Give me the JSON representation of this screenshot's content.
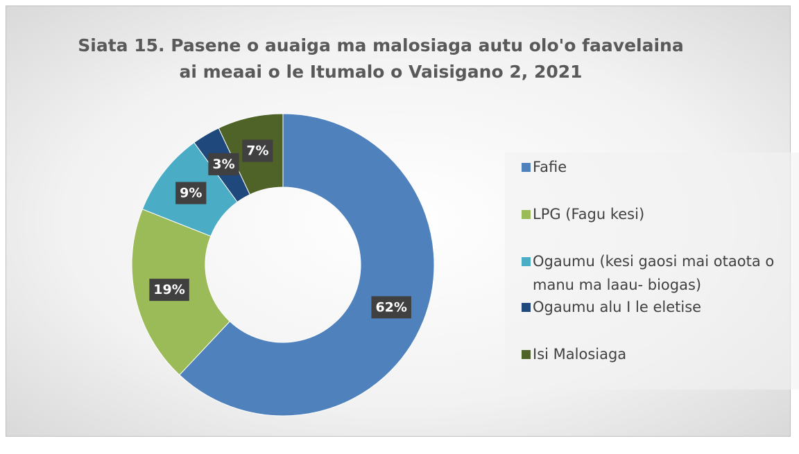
{
  "chart_data": {
    "type": "donut",
    "title": "Siata 15. Pasene o auaiga ma malosiaga autu olo'o faavelaina ai meaai o le Itumalo o Vaisigano 2, 2021",
    "categories": [
      "Fafie",
      "LPG (Fagu kesi)",
      "Ogaumu (kesi gaosi mai otaota o manu ma laau- biogas)",
      "Ogaumu alu I le eletise",
      "Isi Malosiaga"
    ],
    "values": [
      62,
      19,
      9,
      3,
      7
    ],
    "value_labels": [
      "62%",
      "19%",
      "9%",
      "3%",
      "7%"
    ],
    "colors": [
      "#4f81bd",
      "#9bbb59",
      "#4bacc6",
      "#1f497d",
      "#4f6228"
    ],
    "legend": "right"
  }
}
